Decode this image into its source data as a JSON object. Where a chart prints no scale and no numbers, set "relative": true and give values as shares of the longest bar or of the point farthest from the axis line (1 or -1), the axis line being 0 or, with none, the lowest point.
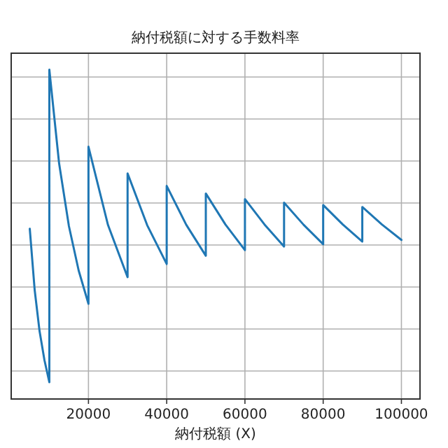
{
  "chart_data": {
    "type": "line",
    "title": "納付税額に対する手数料率",
    "xlabel": "納付税額 (X)",
    "relative": true,
    "xlim": [
      250,
      104750
    ],
    "xticks": [
      20000,
      40000,
      60000,
      80000,
      100000
    ],
    "tick_labels": "x",
    "grid": true,
    "marker": "none",
    "line_style": "solid",
    "series": [
      {
        "color": "#1f77b4",
        "x": [
          5000,
          6250,
          7500,
          8750,
          10000,
          10000,
          12500,
          15000,
          17500,
          20000,
          20000,
          25000,
          30000,
          30000,
          35000,
          40000,
          40000,
          45000,
          50000,
          50000,
          55000,
          60000,
          60000,
          65000,
          70000,
          70000,
          75000,
          80000,
          80000,
          85000,
          90000,
          90000,
          95000,
          100000
        ],
        "values": [
          0.517,
          0.331,
          0.206,
          0.118,
          0.051,
          1.0,
          0.715,
          0.525,
          0.39,
          0.289,
          0.766,
          0.528,
          0.37,
          0.685,
          0.528,
          0.41,
          0.647,
          0.529,
          0.435,
          0.624,
          0.53,
          0.452,
          0.607,
          0.53,
          0.463,
          0.596,
          0.529,
          0.47,
          0.589,
          0.53,
          0.478,
          0.583,
          0.53,
          0.483
        ]
      }
    ]
  }
}
